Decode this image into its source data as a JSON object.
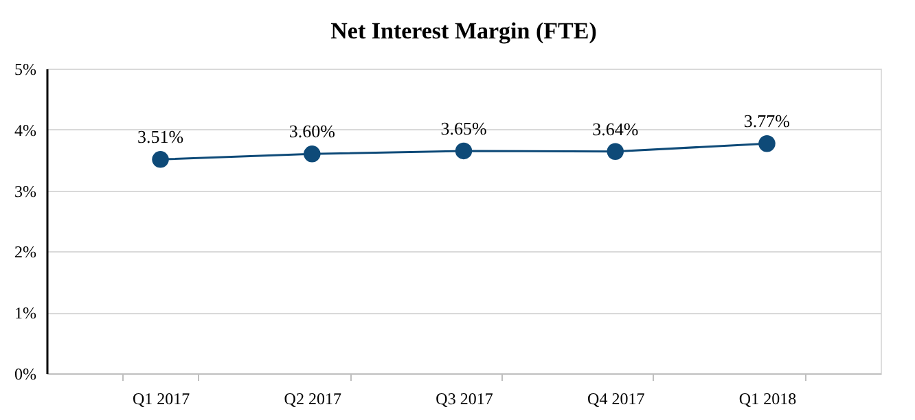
{
  "chart_data": {
    "type": "line",
    "title": "Net Interest Margin (FTE)",
    "categories": [
      "Q1 2017",
      "Q2 2017",
      "Q3 2017",
      "Q4 2017",
      "Q1 2018"
    ],
    "series": [
      {
        "color": "#0e4a78",
        "values": [
          3.51,
          3.6,
          3.65,
          3.64,
          3.77
        ],
        "value_labels": [
          "3.51%",
          "3.60%",
          "3.65%",
          "3.64%",
          "3.77%"
        ]
      }
    ],
    "ylim": [
      0,
      5
    ],
    "yticks": [
      {
        "value": 0,
        "label": "0%"
      },
      {
        "value": 1,
        "label": "1%"
      },
      {
        "value": 2,
        "label": "2%"
      },
      {
        "value": 3,
        "label": "3%"
      },
      {
        "value": 4,
        "label": "4%"
      },
      {
        "value": 5,
        "label": "5%"
      }
    ],
    "grid": "y",
    "marker": "circle",
    "line_style": "solid"
  }
}
